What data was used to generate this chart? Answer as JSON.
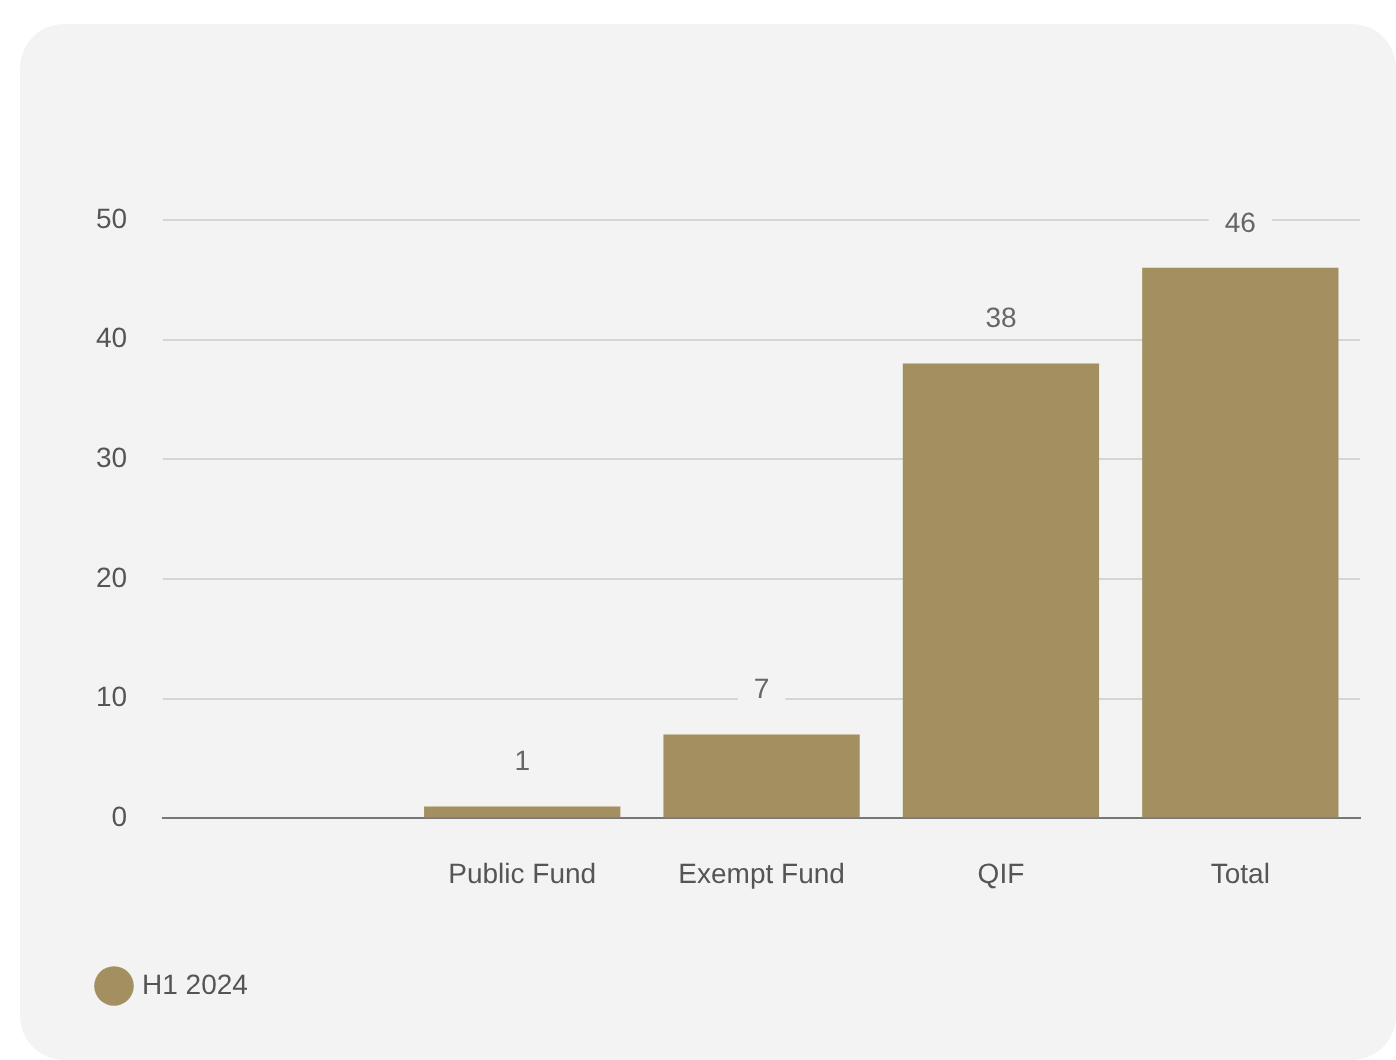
{
  "chart_data": {
    "type": "bar",
    "categories": [
      null,
      "Public Fund",
      "Exempt Fund",
      "QIF",
      "Total"
    ],
    "series": [
      {
        "name": "H1 2024",
        "color": "#a38f5f",
        "values": [
          null,
          1,
          7,
          38,
          46
        ]
      }
    ],
    "ylim": [
      0,
      50
    ],
    "yticks": [
      0,
      10,
      20,
      30,
      40,
      50
    ],
    "grid": "y",
    "legend": "bottom left",
    "data_labels": true
  }
}
